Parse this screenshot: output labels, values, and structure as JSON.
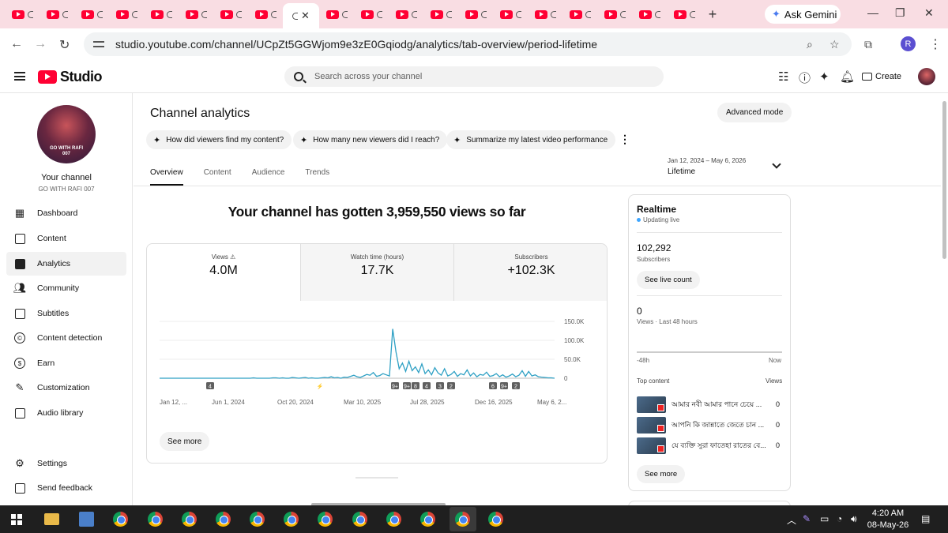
{
  "browser": {
    "ask_gemini": "Ask Gemini",
    "url": "studio.youtube.com/channel/UCpZt5GGWjom9e3zE0Gqiodg/analytics/tab-overview/period-lifetime",
    "profile_initial": "R"
  },
  "header": {
    "brand": "Studio",
    "search_placeholder": "Search across your channel",
    "create_label": "Create"
  },
  "sidebar": {
    "avatar_text_line1": "GO WITH RAFI",
    "avatar_text_line2": "007",
    "your_channel": "Your channel",
    "channel_name": "GO WITH RAFI 007",
    "items": [
      {
        "label": "Dashboard",
        "icon": "dashboard-icon"
      },
      {
        "label": "Content",
        "icon": "content-icon"
      },
      {
        "label": "Analytics",
        "icon": "analytics-icon"
      },
      {
        "label": "Community",
        "icon": "community-icon"
      },
      {
        "label": "Subtitles",
        "icon": "subtitles-icon"
      },
      {
        "label": "Content detection",
        "icon": "content-detection-icon"
      },
      {
        "label": "Earn",
        "icon": "earn-icon"
      },
      {
        "label": "Customization",
        "icon": "customization-icon"
      },
      {
        "label": "Audio library",
        "icon": "audio-library-icon"
      }
    ],
    "settings": "Settings",
    "feedback": "Send feedback"
  },
  "main": {
    "title": "Channel analytics",
    "advanced_mode": "Advanced mode",
    "chips": [
      "How did viewers find my content?",
      "How many new viewers did I reach?",
      "Summarize my latest video performance"
    ],
    "tabs": [
      "Overview",
      "Content",
      "Audience",
      "Trends"
    ],
    "period_dates": "Jan 12, 2024 – May 6, 2026",
    "period_label": "Lifetime",
    "headline": "Your channel has gotten 3,959,550 views so far",
    "metrics": [
      {
        "label": "Views",
        "value": "4.0M"
      },
      {
        "label": "Watch time (hours)",
        "value": "17.7K"
      },
      {
        "label": "Subscribers",
        "value": "+102.3K"
      }
    ],
    "see_more": "See more"
  },
  "chart_data": {
    "type": "line",
    "series": [
      {
        "values": [
          0,
          0,
          0,
          0,
          0,
          0,
          0,
          0,
          0,
          0,
          0,
          0,
          0,
          0,
          0,
          0,
          0,
          0,
          0,
          0,
          0,
          0,
          0,
          0,
          0,
          0,
          0,
          0,
          0,
          1,
          0,
          0,
          0,
          0,
          0,
          1,
          1,
          0,
          1,
          0,
          0,
          2,
          1,
          0,
          1,
          2,
          0,
          1,
          0,
          0,
          1,
          2,
          1,
          4,
          1,
          2,
          0,
          3,
          2,
          5,
          8,
          4,
          2,
          6,
          10,
          8,
          15,
          5,
          7,
          12,
          9,
          6,
          130,
          70,
          25,
          40,
          18,
          45,
          20,
          30,
          15,
          38,
          12,
          22,
          9,
          28,
          14,
          8,
          25,
          6,
          10,
          18,
          5,
          12,
          9,
          22,
          6,
          14,
          4,
          10,
          8,
          16,
          5,
          7,
          12,
          4,
          9,
          3,
          6,
          11,
          4,
          8,
          20,
          5,
          18,
          6,
          9,
          4,
          3,
          2,
          1,
          1,
          0
        ]
      }
    ],
    "x_tick_labels": [
      "Jan 12, ...",
      "Jun 1, 2024",
      "Oct 20, 2024",
      "Mar 10, 2025",
      "Jul 28, 2025",
      "Dec 16, 2025",
      "May 6, 2..."
    ],
    "y_tick_labels": [
      "150.0K",
      "100.0K",
      "50.0K",
      "0"
    ],
    "ylim": [
      0,
      150000
    ],
    "grid": true,
    "markers": [
      "4",
      "",
      "9+",
      "9+",
      "8",
      "4",
      "3",
      "2",
      "6",
      "9+",
      "2"
    ]
  },
  "realtime": {
    "title": "Realtime",
    "status": "Updating live",
    "subscribers": "102,292",
    "subscribers_label": "Subscribers",
    "see_live_count": "See live count",
    "views": "0",
    "views_label": "Views · Last 48 hours",
    "axis_start": "-48h",
    "axis_end": "Now",
    "top_content_label": "Top content",
    "views_col": "Views",
    "top_content": [
      {
        "title": "আমার নবী আমার পানে চেয়ে ...",
        "views": "0"
      },
      {
        "title": "আপনি কি জান্নাতে জেতে চান ...",
        "views": "0"
      },
      {
        "title": "যে ব্যক্তি সুরা ফাতেহা রাতের বে...",
        "views": "0"
      }
    ],
    "see_more": "See more"
  },
  "taskbar": {
    "time": "4:20 AM",
    "date": "08-May-26"
  }
}
